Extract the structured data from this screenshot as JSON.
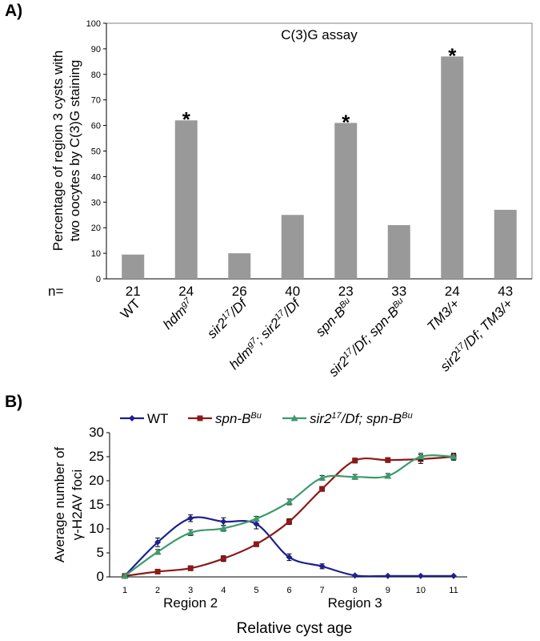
{
  "panel_a": {
    "label": "A)"
  },
  "panel_b": {
    "label": "B)"
  },
  "chart_data": [
    {
      "type": "bar",
      "title": "C(3)G assay",
      "ylabel": [
        "Percentage of region 3 cysts with",
        "two oocytes by C(3)G staining"
      ],
      "ylim": [
        0,
        100
      ],
      "yticks": [
        0,
        10,
        20,
        30,
        40,
        50,
        60,
        70,
        80,
        90,
        100
      ],
      "grid": false,
      "n_prefix": "n=",
      "bar_color": "#999999",
      "categories": [
        {
          "parts": [
            {
              "t": "WT",
              "sup": false,
              "it": false
            }
          ]
        },
        {
          "parts": [
            {
              "t": "hdm",
              "sup": false,
              "it": true
            },
            {
              "t": "g7",
              "sup": true,
              "it": true
            }
          ]
        },
        {
          "parts": [
            {
              "t": "sir2",
              "sup": false,
              "it": true
            },
            {
              "t": "17",
              "sup": true,
              "it": true
            },
            {
              "t": "/Df",
              "sup": false,
              "it": true
            }
          ]
        },
        {
          "parts": [
            {
              "t": "hdm",
              "sup": false,
              "it": true
            },
            {
              "t": "g7",
              "sup": true,
              "it": true
            },
            {
              "t": "; sir2",
              "sup": false,
              "it": true
            },
            {
              "t": "17",
              "sup": true,
              "it": true
            },
            {
              "t": "/Df",
              "sup": false,
              "it": true
            }
          ]
        },
        {
          "parts": [
            {
              "t": "spn-B",
              "sup": false,
              "it": true
            },
            {
              "t": "Bu",
              "sup": true,
              "it": true
            }
          ]
        },
        {
          "parts": [
            {
              "t": "sir2",
              "sup": false,
              "it": true
            },
            {
              "t": "17",
              "sup": true,
              "it": true
            },
            {
              "t": "/Df; spn-B",
              "sup": false,
              "it": true
            },
            {
              "t": "Bu",
              "sup": true,
              "it": true
            }
          ]
        },
        {
          "parts": [
            {
              "t": "TM3/+",
              "sup": false,
              "it": true
            }
          ]
        },
        {
          "parts": [
            {
              "t": "sir2",
              "sup": false,
              "it": true
            },
            {
              "t": "17",
              "sup": true,
              "it": true
            },
            {
              "t": "/Df; TM3/+",
              "sup": false,
              "it": true
            }
          ]
        }
      ],
      "values": [
        9.5,
        62,
        10,
        25,
        61,
        21,
        87,
        27
      ],
      "n": [
        "21",
        "24",
        "26",
        "40",
        "23",
        "33",
        "24",
        "43"
      ],
      "significance": [
        "",
        "*",
        "",
        "",
        "*",
        "",
        "*",
        ""
      ]
    },
    {
      "type": "line",
      "xlabel": "Relative cyst age",
      "ylabel": [
        "Average number of",
        "γ-H2AV foci"
      ],
      "x": [
        1,
        2,
        3,
        4,
        5,
        6,
        7,
        8,
        9,
        10,
        11
      ],
      "ylim": [
        0,
        30
      ],
      "yticks": [
        0,
        5,
        10,
        15,
        20,
        25,
        30
      ],
      "grid": false,
      "legend_position": "top",
      "region_labels": [
        {
          "text": "Region 2",
          "at_x": 3
        },
        {
          "text": "Region 3",
          "at_x": 8
        }
      ],
      "series": [
        {
          "name_parts": [
            {
              "t": "WT",
              "sup": false,
              "it": false
            }
          ],
          "color": "#1f1f8f",
          "marker": "diamond",
          "values": [
            0.2,
            7.2,
            12.2,
            11.5,
            11.0,
            4.1,
            2.2,
            0.3,
            0.2,
            0.2,
            0.2
          ],
          "errors": [
            0.2,
            0.9,
            0.7,
            0.8,
            1.0,
            0.7,
            0.5,
            0.1,
            0.1,
            0.1,
            0.1
          ]
        },
        {
          "name_parts": [
            {
              "t": "spn-B",
              "sup": false,
              "it": true
            },
            {
              "t": "Bu",
              "sup": true,
              "it": true
            }
          ],
          "color": "#8b1a1a",
          "marker": "square",
          "values": [
            0.2,
            1.1,
            1.8,
            3.8,
            6.8,
            11.5,
            18.3,
            24.2,
            24.3,
            24.5,
            25.0
          ],
          "errors": [
            0.1,
            0.4,
            0.5,
            0.6,
            0.5,
            0.6,
            0.5,
            0.5,
            0.5,
            0.9,
            0.7
          ]
        },
        {
          "name_parts": [
            {
              "t": "sir2",
              "sup": false,
              "it": true
            },
            {
              "t": "17",
              "sup": true,
              "it": true
            },
            {
              "t": "/Df; spn-B",
              "sup": false,
              "it": true
            },
            {
              "t": "Bu",
              "sup": true,
              "it": true
            }
          ],
          "color": "#3c9a6e",
          "marker": "triangle",
          "values": [
            0.2,
            5.2,
            9.2,
            10.1,
            12.1,
            15.6,
            20.6,
            20.8,
            21.0,
            25.0,
            25.0
          ],
          "errors": [
            0.1,
            0.5,
            0.6,
            0.6,
            0.5,
            0.6,
            0.5,
            0.5,
            0.5,
            0.7,
            0.7
          ]
        }
      ]
    }
  ]
}
